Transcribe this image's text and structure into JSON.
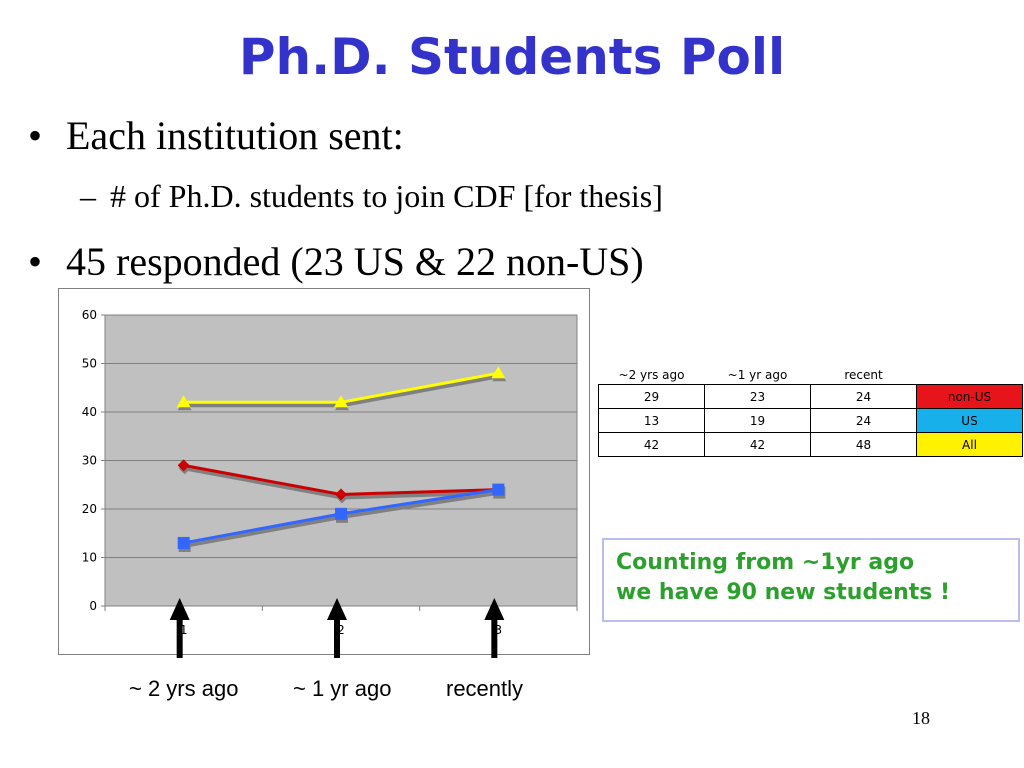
{
  "slide": {
    "title": "Ph.D. Students Poll",
    "bullets": [
      {
        "marker": "•",
        "text": "Each institution sent:"
      },
      {
        "marker": "–",
        "text": "# of Ph.D. students to join CDF [for thesis]"
      },
      {
        "marker": "•",
        "text": "45 responded (23 US & 22 non-US)"
      }
    ],
    "callout": [
      "Counting from ~1yr ago",
      "we have 90 new students !"
    ],
    "time_labels": [
      "~ 2 yrs ago",
      "~ 1 yr ago",
      "recently"
    ],
    "page_number": "18"
  },
  "table": {
    "headers": [
      "~2 yrs ago",
      "~1 yr ago",
      "recent"
    ],
    "rows": [
      {
        "values": [
          "29",
          "23",
          "24"
        ],
        "label": "non-US",
        "color": "#e8141c"
      },
      {
        "values": [
          "13",
          "19",
          "24"
        ],
        "label": "US",
        "color": "#18b0ea"
      },
      {
        "values": [
          "42",
          "42",
          "48"
        ],
        "label": "All",
        "color": "#fff200"
      }
    ]
  },
  "chart_data": {
    "type": "line",
    "categories": [
      "1",
      "2",
      "3"
    ],
    "ylim": [
      0,
      60
    ],
    "yticks": [
      "0",
      "10",
      "20",
      "30",
      "40",
      "50",
      "60"
    ],
    "grid": true,
    "plot_background": "#c0c0c0",
    "series": [
      {
        "values": [
          29,
          23,
          24
        ],
        "color": "#cc0000",
        "marker": "diamond"
      },
      {
        "values": [
          13,
          19,
          24
        ],
        "color": "#3366ff",
        "marker": "square"
      },
      {
        "values": [
          42,
          42,
          48
        ],
        "color": "#ffff00",
        "marker": "triangle"
      }
    ]
  }
}
